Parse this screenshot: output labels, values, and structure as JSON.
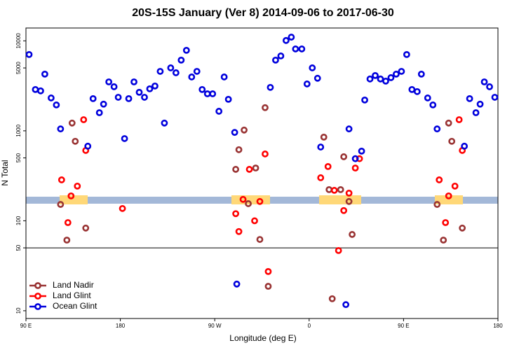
{
  "chart_data": {
    "type": "scatter",
    "title": "20S-15S January (Ver 8)   2014-09-06 to 2017-06-30",
    "x_label": "Longitude (deg E)",
    "y_label": "N Total",
    "xlim": [
      90,
      540
    ],
    "xticks": [
      {
        "value": 90,
        "label": "90 E"
      },
      180,
      {
        "value": 270,
        "label": "90 W"
      },
      {
        "value": 360,
        "label": "0"
      },
      {
        "value": 450,
        "label": "90 E"
      },
      {
        "value": 540,
        "label": "180"
      }
    ],
    "ylim": [
      8.2,
      13900
    ],
    "y_scale": "log",
    "yticks": [
      10,
      50,
      100,
      500,
      1000,
      5000,
      10000
    ],
    "hline": 50,
    "legend": "bottom-left",
    "series": [
      {
        "name": "Land Nadir",
        "color": "#993333",
        "x": [
          123,
          129,
          134,
          137,
          147,
          290,
          293,
          298,
          302,
          309,
          313,
          318,
          321,
          374,
          379,
          382,
          390,
          393,
          398,
          401,
          482,
          488,
          493,
          496,
          506
        ],
        "values": [
          152,
          61,
          1220,
          765,
          83,
          373,
          617,
          1020,
          155,
          386,
          62,
          1810,
          18.7,
          851,
          222,
          13.6,
          222,
          515,
          164,
          70.5,
          152,
          61,
          1220,
          765,
          83
        ]
      },
      {
        "name": "Land Glint",
        "color": "#ff0000",
        "x": [
          124,
          130,
          133,
          139,
          145,
          147,
          182,
          290,
          293,
          297,
          303,
          308,
          313,
          318,
          321,
          371,
          378,
          384,
          388,
          393,
          398,
          404,
          408,
          484,
          490,
          493,
          499,
          503,
          506
        ],
        "values": [
          285,
          95.5,
          189,
          243,
          1330,
          605,
          137,
          120,
          76,
          173,
          373,
          100,
          164,
          553,
          27.3,
          301,
          401,
          218,
          46.7,
          130,
          203,
          386,
          490,
          285,
          95.5,
          189,
          243,
          1330,
          605
        ]
      },
      {
        "name": "Ocean Glint",
        "color": "#0000dd",
        "x": [
          93,
          99,
          104,
          108,
          114,
          119,
          123,
          149,
          154,
          160,
          164,
          169,
          174,
          178,
          184,
          188,
          193,
          198,
          203,
          208,
          213,
          218,
          222,
          228,
          233,
          238,
          243,
          248,
          253,
          258,
          263,
          268,
          274,
          279,
          283,
          289,
          291,
          323,
          328,
          333,
          338,
          343,
          347,
          353,
          358,
          363,
          368,
          371,
          395,
          398,
          404,
          410,
          413,
          418,
          423,
          428,
          433,
          438,
          443,
          448,
          453,
          458,
          463,
          467,
          473,
          478,
          482,
          508,
          513,
          519,
          523,
          527,
          532,
          537
        ],
        "values": [
          7050,
          2880,
          2780,
          4270,
          2320,
          1940,
          1050,
          675,
          2280,
          1590,
          1980,
          3500,
          3090,
          2360,
          820,
          2280,
          3500,
          2680,
          2360,
          2930,
          3150,
          4580,
          1220,
          5010,
          4420,
          6110,
          7850,
          3970,
          4580,
          2880,
          2580,
          2580,
          1650,
          3970,
          2240,
          960,
          19.8,
          3040,
          6110,
          6800,
          10100,
          11000,
          8130,
          8130,
          3320,
          5010,
          3840,
          660,
          11.7,
          1050,
          490,
          595,
          2200,
          3770,
          4120,
          3770,
          3570,
          3900,
          4270,
          4580,
          7050,
          2880,
          2730,
          4270,
          2320,
          1940,
          1050,
          675,
          2280,
          1590,
          1980,
          3500,
          3090,
          2360
        ]
      }
    ]
  }
}
